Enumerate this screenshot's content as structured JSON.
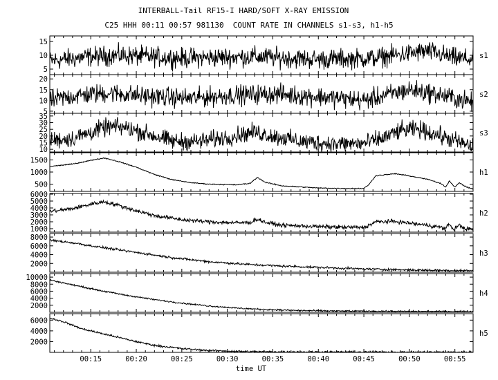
{
  "header": {
    "title": "INTERBALL-Tail RF15-I HARD/SOFT X-RAY EMISSION",
    "subtitle": "C25 HHH 00:11 00:57 981130  COUNT RATE IN CHANNELS s1-s3, h1-h5"
  },
  "chart_data": {
    "type": "line",
    "xlabel": "time UT",
    "x_range_minutes": [
      10.5,
      57.0
    ],
    "x_ticks": [
      "00:15",
      "00:20",
      "00:25",
      "00:30",
      "00:35",
      "00:40",
      "00:45",
      "00:50",
      "00:55"
    ],
    "line_color": "#000000",
    "panels": [
      {
        "name": "s1",
        "ylim": [
          3,
          17
        ],
        "yticks": [
          5,
          10,
          15
        ],
        "noise": 2.2,
        "points": [
          [
            10.5,
            8
          ],
          [
            15,
            9.5
          ],
          [
            18,
            10
          ],
          [
            25,
            9
          ],
          [
            33,
            9.5
          ],
          [
            40,
            8.5
          ],
          [
            46,
            9
          ],
          [
            52,
            11.5
          ],
          [
            55,
            9
          ],
          [
            57,
            8.5
          ]
        ]
      },
      {
        "name": "s2",
        "ylim": [
          4,
          22
        ],
        "yticks": [
          5,
          10,
          15,
          20
        ],
        "noise": 2.8,
        "points": [
          [
            10.5,
            10
          ],
          [
            13,
            12
          ],
          [
            17,
            13.5
          ],
          [
            21,
            12
          ],
          [
            26,
            11
          ],
          [
            31,
            12.5
          ],
          [
            35,
            13
          ],
          [
            41,
            11.5
          ],
          [
            45,
            10
          ],
          [
            50,
            15
          ],
          [
            53,
            13
          ],
          [
            57,
            9
          ]
        ]
      },
      {
        "name": "s3",
        "ylim": [
          8,
          37
        ],
        "yticks": [
          10,
          15,
          20,
          25,
          30,
          35
        ],
        "noise": 4,
        "points": [
          [
            10.5,
            17
          ],
          [
            13,
            18
          ],
          [
            15.5,
            24
          ],
          [
            17,
            27
          ],
          [
            19,
            26
          ],
          [
            21,
            22
          ],
          [
            24,
            16
          ],
          [
            27,
            16
          ],
          [
            30,
            19
          ],
          [
            33,
            23
          ],
          [
            35,
            20
          ],
          [
            38,
            16
          ],
          [
            42,
            14
          ],
          [
            45,
            14.5
          ],
          [
            47,
            18
          ],
          [
            49,
            24
          ],
          [
            51,
            25
          ],
          [
            53,
            21
          ],
          [
            56,
            14
          ],
          [
            57,
            12
          ]
        ]
      },
      {
        "name": "h1",
        "ylim": [
          200,
          1800
        ],
        "yticks": [
          500,
          1000,
          1500
        ],
        "noise": 12,
        "points": [
          [
            10.5,
            1230
          ],
          [
            13,
            1330
          ],
          [
            15.5,
            1520
          ],
          [
            16.5,
            1580
          ],
          [
            18,
            1440
          ],
          [
            20,
            1200
          ],
          [
            22,
            900
          ],
          [
            24,
            680
          ],
          [
            26,
            560
          ],
          [
            28,
            500
          ],
          [
            31,
            470
          ],
          [
            32.5,
            530
          ],
          [
            33.3,
            780
          ],
          [
            34.2,
            570
          ],
          [
            36,
            430
          ],
          [
            40,
            340
          ],
          [
            43,
            320
          ],
          [
            45,
            320
          ],
          [
            45.6,
            500
          ],
          [
            46.3,
            850
          ],
          [
            48.5,
            930
          ],
          [
            50,
            840
          ],
          [
            52,
            700
          ],
          [
            53.5,
            520
          ],
          [
            54,
            380
          ],
          [
            54.4,
            640
          ],
          [
            55,
            370
          ],
          [
            55.5,
            560
          ],
          [
            56.2,
            390
          ],
          [
            57,
            300
          ]
        ]
      },
      {
        "name": "h2",
        "ylim": [
          500,
          6100
        ],
        "yticks": [
          1000,
          2000,
          3000,
          4000,
          5000,
          6000
        ],
        "noise": 180,
        "points": [
          [
            10.5,
            3500
          ],
          [
            13,
            3900
          ],
          [
            15.5,
            4700
          ],
          [
            16.5,
            4900
          ],
          [
            18,
            4400
          ],
          [
            20,
            3600
          ],
          [
            22,
            2900
          ],
          [
            25,
            2300
          ],
          [
            28,
            2000
          ],
          [
            31,
            1850
          ],
          [
            32.5,
            1900
          ],
          [
            33.3,
            2400
          ],
          [
            34.2,
            1900
          ],
          [
            36,
            1500
          ],
          [
            40,
            1300
          ],
          [
            43,
            1200
          ],
          [
            45,
            1200
          ],
          [
            45.6,
            1500
          ],
          [
            46.3,
            2000
          ],
          [
            48.5,
            2050
          ],
          [
            50,
            1800
          ],
          [
            52,
            1500
          ],
          [
            53.5,
            1200
          ],
          [
            54,
            900
          ],
          [
            54.3,
            1800
          ],
          [
            54.8,
            900
          ],
          [
            55.5,
            1500
          ],
          [
            56.2,
            950
          ],
          [
            57,
            900
          ]
        ]
      },
      {
        "name": "h3",
        "ylim": [
          0,
          8800
        ],
        "yticks": [
          2000,
          4000,
          6000,
          8000
        ],
        "noise": 160,
        "points": [
          [
            10.5,
            7300
          ],
          [
            13,
            6700
          ],
          [
            16,
            5700
          ],
          [
            20,
            4500
          ],
          [
            24,
            3300
          ],
          [
            28,
            2400
          ],
          [
            32,
            1800
          ],
          [
            36,
            1400
          ],
          [
            40,
            1100
          ],
          [
            44,
            800
          ],
          [
            48,
            600
          ],
          [
            52,
            450
          ],
          [
            57,
            350
          ]
        ]
      },
      {
        "name": "h4",
        "ylim": [
          0,
          11000
        ],
        "yticks": [
          2000,
          4000,
          6000,
          8000,
          10000
        ],
        "noise": 130,
        "points": [
          [
            10.5,
            9200
          ],
          [
            13,
            7800
          ],
          [
            16,
            6200
          ],
          [
            19,
            4800
          ],
          [
            22,
            3600
          ],
          [
            25,
            2600
          ],
          [
            28,
            1800
          ],
          [
            31,
            1200
          ],
          [
            34,
            800
          ],
          [
            38,
            500
          ],
          [
            42,
            350
          ],
          [
            46,
            300
          ],
          [
            50,
            250
          ],
          [
            57,
            220
          ]
        ]
      },
      {
        "name": "h5",
        "ylim": [
          0,
          7200
        ],
        "yticks": [
          2000,
          4000,
          6000
        ],
        "noise": 110,
        "points": [
          [
            10.5,
            6400
          ],
          [
            12,
            5700
          ],
          [
            14,
            4400
          ],
          [
            16,
            3600
          ],
          [
            18,
            2800
          ],
          [
            20,
            2000
          ],
          [
            22,
            1300
          ],
          [
            25,
            700
          ],
          [
            28,
            350
          ],
          [
            31,
            180
          ],
          [
            35,
            100
          ],
          [
            45,
            60
          ],
          [
            57,
            50
          ]
        ]
      }
    ]
  }
}
